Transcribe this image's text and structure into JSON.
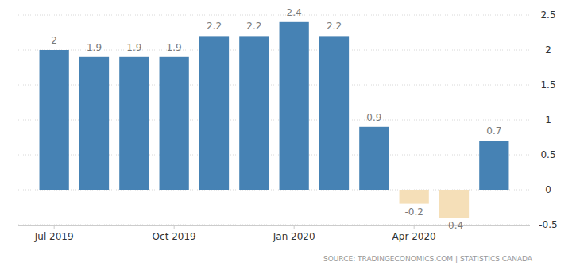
{
  "chart_data": {
    "type": "bar",
    "categories": [
      "Jul 2019",
      null,
      null,
      "Oct 2019",
      null,
      null,
      "Jan 2020",
      null,
      null,
      "Apr 2020",
      null,
      null
    ],
    "values": [
      2,
      1.9,
      1.9,
      1.9,
      2.2,
      2.2,
      2.4,
      2.2,
      0.9,
      -0.2,
      -0.4,
      0.7
    ],
    "colors": [
      "#4682b4",
      "#4682b4",
      "#4682b4",
      "#4682b4",
      "#4682b4",
      "#4682b4",
      "#4682b4",
      "#4682b4",
      "#4682b4",
      "#f5dfb8",
      "#f5dfb8",
      "#4682b4"
    ],
    "ylim": [
      -0.5,
      2.5
    ],
    "yticks": [
      -0.5,
      0,
      0.5,
      1,
      1.5,
      2,
      2.5
    ],
    "grid": true,
    "data_labels": true,
    "source": "SOURCE: TRADINGECONOMICS.COM | STATISTICS CANADA"
  }
}
